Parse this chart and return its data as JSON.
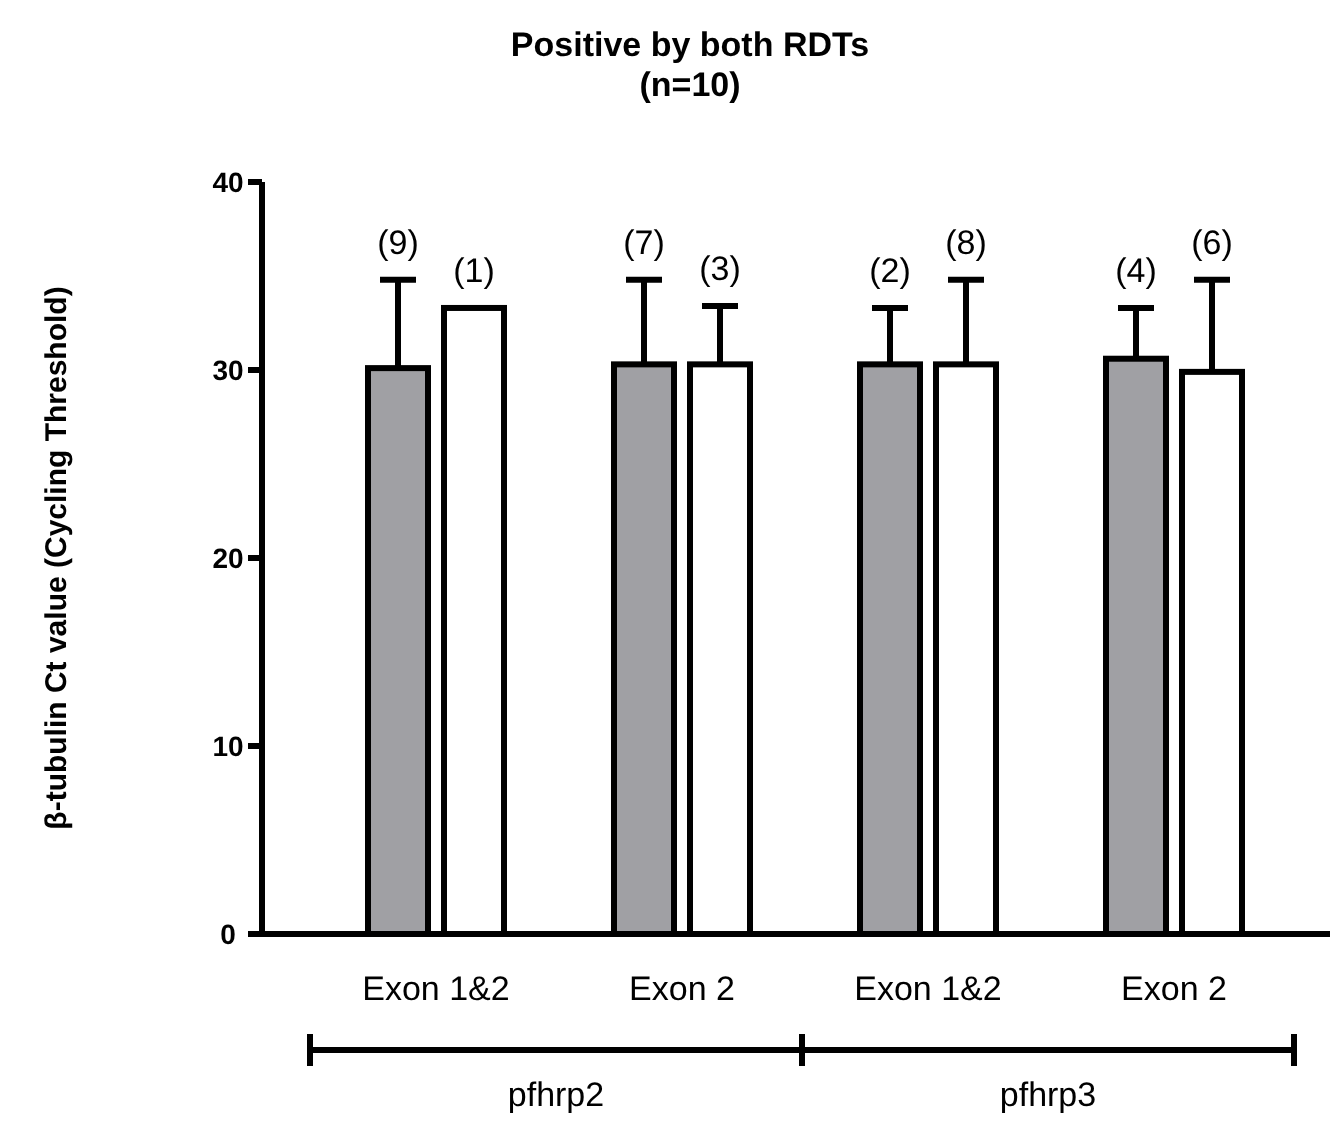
{
  "chart_data": {
    "type": "bar",
    "title": "Positive by both RDTs\n(n=10)",
    "ylabel": "β-tubulin Ct value (Cycling Threshold)",
    "categories": [
      "Exon 1&2",
      "Exon 2",
      "Exon 1&2",
      "Exon 2"
    ],
    "series": [
      {
        "color": "#a0a0a4",
        "values": [
          30.1,
          30.3,
          30.3,
          30.6
        ],
        "errors": [
          [
            30.1,
            34.8
          ],
          [
            30.3,
            34.8
          ],
          [
            30.3,
            33.3
          ],
          [
            30.6,
            33.3
          ]
        ]
      },
      {
        "color": "#ffffff",
        "values": [
          33.3,
          30.3,
          30.3,
          29.9
        ],
        "errors": [
          null,
          [
            30.3,
            33.4
          ],
          [
            30.3,
            34.8
          ],
          [
            29.9,
            34.8
          ]
        ]
      }
    ],
    "annotations": [
      "(9)",
      "(1)",
      "(7)",
      "(3)",
      "(2)",
      "(8)",
      "(4)",
      "(6)",
      "pfhrp2",
      "pfhrp3"
    ],
    "ylim": [
      0,
      40
    ],
    "yticks": [
      0,
      10,
      20,
      30,
      40
    ],
    "grid": false
  }
}
